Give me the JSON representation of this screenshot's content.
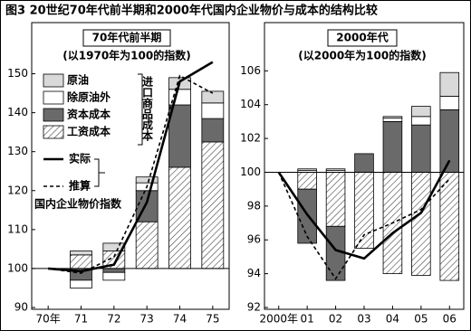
{
  "title": "图3 20世纪70年代前半期和2000年代国内企业物价与成本的结构比较",
  "chart_data": [
    {
      "type": "bar",
      "title": "70年代前半期",
      "subtitle": "(以1970年为100的指数)",
      "categories": [
        "70年",
        "71",
        "72",
        "73",
        "74",
        "75"
      ],
      "baseline": 100,
      "ylim": [
        90,
        155
      ],
      "yticks": [
        90,
        100,
        110,
        120,
        130,
        140,
        150
      ],
      "legend": "upper left",
      "annotations": [
        "进口商品成本",
        "国内企业物价指数"
      ],
      "series": [
        {
          "name": "原油",
          "type": "bar",
          "color": "#d9d9d9",
          "values": [
            null,
            1,
            2,
            1.5,
            3,
            3
          ]
        },
        {
          "name": "除原油外",
          "type": "bar",
          "color": "#ffffff",
          "values": [
            null,
            -2,
            -2,
            2,
            4,
            4
          ]
        },
        {
          "name": "资本成本",
          "type": "bar",
          "color": "#6a6a6a",
          "values": [
            null,
            -3,
            -1,
            8,
            16,
            6
          ]
        },
        {
          "name": "工资成本",
          "type": "bar",
          "color": "#ffffff",
          "pattern": "hatch",
          "values": [
            null,
            3.5,
            4.5,
            12,
            26,
            32.5
          ]
        },
        {
          "name": "实际",
          "type": "line",
          "color": "#000000",
          "dash": false,
          "values": [
            100,
            99.3,
            101,
            117,
            148,
            153
          ]
        },
        {
          "name": "推算",
          "type": "line",
          "color": "#000000",
          "dash": true,
          "values": [
            100,
            98.8,
            103,
            121,
            149.5,
            145
          ]
        }
      ]
    },
    {
      "type": "bar",
      "title": "2000年代",
      "subtitle": "(以2000年为100的指数)",
      "categories": [
        "2000年",
        "01",
        "02",
        "03",
        "04",
        "05",
        "06"
      ],
      "baseline": 100,
      "ylim": [
        92,
        106.5
      ],
      "yticks": [
        92,
        94,
        96,
        98,
        100,
        102,
        104,
        106
      ],
      "series": [
        {
          "type": "bar",
          "color": "#d9d9d9",
          "values": [
            null,
            0.1,
            0.1,
            0,
            0.1,
            0.6,
            1.4
          ]
        },
        {
          "type": "bar",
          "color": "#ffffff",
          "values": [
            null,
            0.1,
            0.1,
            0,
            0.2,
            0.5,
            0.8
          ]
        },
        {
          "type": "bar",
          "color": "#6a6a6a",
          "values": [
            null,
            -3.2,
            -3.2,
            1.1,
            3,
            2.8,
            3.7
          ]
        },
        {
          "type": "bar",
          "color": "#ffffff",
          "pattern": "hatch",
          "values": [
            null,
            -1,
            -3.2,
            -4.5,
            -6,
            -6.1,
            -6.4
          ]
        },
        {
          "type": "line",
          "color": "#000000",
          "dash": false,
          "values": [
            100,
            97.5,
            95.4,
            94.9,
            96.4,
            97.6,
            100.7
          ]
        },
        {
          "type": "line",
          "color": "#000000",
          "dash": true,
          "values": [
            100,
            96.2,
            93.7,
            96.3,
            97,
            97.8,
            99.6
          ]
        }
      ]
    }
  ]
}
